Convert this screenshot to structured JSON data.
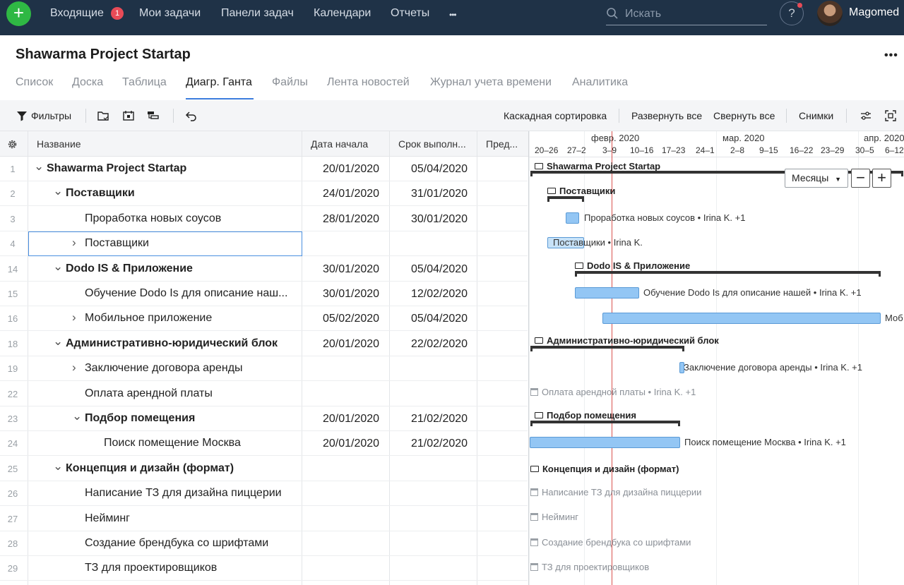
{
  "nav": {
    "items": [
      "Входящие",
      "Мои задачи",
      "Панели задач",
      "Календари",
      "Отчеты"
    ],
    "inbox_badge": "1",
    "more": "•••",
    "search_placeholder": "Искать",
    "help": "?",
    "user": "Magomed"
  },
  "project": {
    "title": "Shawarma Project Startap",
    "tabs": [
      "Список",
      "Доска",
      "Таблица",
      "Диагр. Ганта",
      "Файлы",
      "Лента новостей",
      "Журнал учета времени",
      "Аналитика"
    ],
    "active_tab": "Диагр. Ганта"
  },
  "toolbar": {
    "filters": "Фильтры",
    "cascade_sort": "Каскадная сортировка",
    "expand_all": "Развернуть все",
    "collapse_all": "Свернуть все",
    "snapshots": "Снимки"
  },
  "grid": {
    "columns": [
      "Название",
      "Дата начала",
      "Срок выполн...",
      "Пред..."
    ],
    "rows": [
      {
        "num": "1",
        "name": "Shawarma Project Startap",
        "start": "20/01/2020",
        "due": "05/04/2020",
        "bold": true,
        "expander": "down"
      },
      {
        "num": "2",
        "name": "Поставщики",
        "start": "24/01/2020",
        "due": "31/01/2020",
        "bold": true,
        "expander": "down"
      },
      {
        "num": "3",
        "name": "Проработка новых соусов",
        "start": "28/01/2020",
        "due": "30/01/2020",
        "bold": false,
        "expander": ""
      },
      {
        "num": "4",
        "name": "Поставщики",
        "start": "",
        "due": "",
        "bold": false,
        "expander": "right"
      },
      {
        "num": "14",
        "name": "Dodo IS & Приложение",
        "start": "30/01/2020",
        "due": "05/04/2020",
        "bold": true,
        "expander": "down"
      },
      {
        "num": "15",
        "name": "Обучение Dodo Is для описание наш...",
        "start": "30/01/2020",
        "due": "12/02/2020",
        "bold": false,
        "expander": ""
      },
      {
        "num": "16",
        "name": "Мобильное приложение",
        "start": "05/02/2020",
        "due": "05/04/2020",
        "bold": false,
        "expander": "right"
      },
      {
        "num": "18",
        "name": "Административно-юридический блок",
        "start": "20/01/2020",
        "due": "22/02/2020",
        "bold": true,
        "expander": "down"
      },
      {
        "num": "19",
        "name": "Заключение договора аренды",
        "start": "",
        "due": "",
        "bold": false,
        "expander": "right"
      },
      {
        "num": "22",
        "name": "Оплата арендной платы",
        "start": "",
        "due": "",
        "bold": false,
        "expander": ""
      },
      {
        "num": "23",
        "name": "Подбор помещения",
        "start": "20/01/2020",
        "due": "21/02/2020",
        "bold": true,
        "expander": "down"
      },
      {
        "num": "24",
        "name": "Поиск помещение Москва",
        "start": "20/01/2020",
        "due": "21/02/2020",
        "bold": false,
        "expander": ""
      },
      {
        "num": "25",
        "name": "Концепция и дизайн (формат)",
        "start": "",
        "due": "",
        "bold": true,
        "expander": "down"
      },
      {
        "num": "26",
        "name": "Написание ТЗ для дизайна пиццерии",
        "start": "",
        "due": "",
        "bold": false,
        "expander": ""
      },
      {
        "num": "27",
        "name": "Нейминг",
        "start": "",
        "due": "",
        "bold": false,
        "expander": ""
      },
      {
        "num": "28",
        "name": "Создание брендбука со шрифтами",
        "start": "",
        "due": "",
        "bold": false,
        "expander": ""
      },
      {
        "num": "29",
        "name": "ТЗ для проектировщиков",
        "start": "",
        "due": "",
        "bold": false,
        "expander": ""
      }
    ]
  },
  "gantt": {
    "months": [
      "февр. 2020",
      "мар. 2020",
      "апр. 2020"
    ],
    "weeks": [
      "20–26",
      "27–2",
      "3–9",
      "10–16",
      "17–23",
      "24–1",
      "2–8",
      "9–15",
      "16–22",
      "23–29",
      "30–5",
      "6–12"
    ],
    "zoom": "Месяцы",
    "zoom_out": "−",
    "zoom_in": "+",
    "labels": {
      "g1": "Shawarma Project Startap",
      "g2": "Поставщики",
      "t3": "Проработка новых соусов • Irina K. +1",
      "t4": "Поставщики • Irina K.",
      "g14": "Dodo IS & Приложение",
      "t15": "Обучение Dodo Is для описание нашей • Irina K. +1",
      "t16": "Моб",
      "g18": "Административно-юридический блок",
      "t19": "Заключение договора аренды • Irina K. +1",
      "t22": "Оплата арендной платы • Irina K. +1",
      "g23": "Подбор помещения",
      "t24": "Поиск помещение Москва • Irina K. +1",
      "g25": "Концепция и дизайн (формат)",
      "t26": "Написание ТЗ для дизайна пиццерии",
      "t27": "Нейминг",
      "t28": "Создание брендбука со шрифтами",
      "t29": "ТЗ для проектировщиков"
    }
  }
}
